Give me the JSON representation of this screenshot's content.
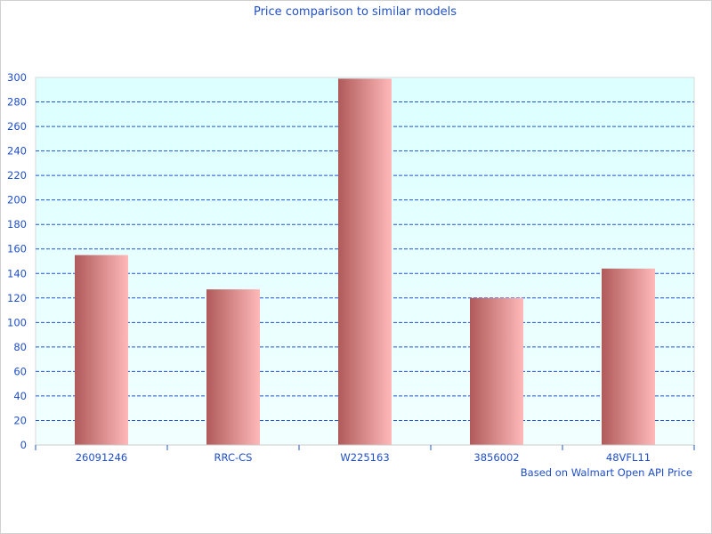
{
  "chart_data": {
    "type": "bar",
    "title": "Price comparison to similar models",
    "xlabel": "Based on Walmart Open API Price",
    "ylabel": "",
    "categories": [
      "26091246",
      "RRC-CS",
      "W225163",
      "3856002",
      "48VFL11"
    ],
    "values": [
      155,
      127,
      299,
      120,
      144
    ],
    "ylim": [
      0,
      300
    ],
    "yticks": [
      0,
      20,
      40,
      60,
      80,
      100,
      120,
      140,
      160,
      180,
      200,
      220,
      240,
      260,
      280,
      300
    ],
    "grid": true,
    "legend": "none",
    "colors": {
      "bar_dark": "#b05a5a",
      "bar_light": "#ffb9b9",
      "plot_bg_top": "#dcffff",
      "plot_bg_bottom": "#f2ffff",
      "grid": "#2255cc",
      "text": "#1f4fc8"
    }
  }
}
